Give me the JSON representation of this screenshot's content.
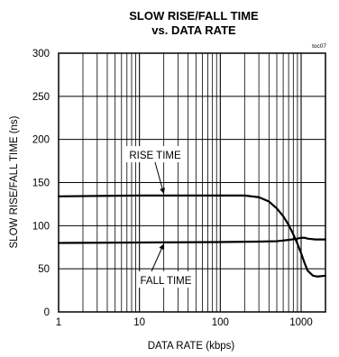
{
  "chart_data": {
    "type": "line",
    "title": "SLOW RISE/FALL TIME",
    "subtitle": "vs. DATA RATE",
    "figure_code": "toc07",
    "xlabel": "DATA RATE (kbps)",
    "ylabel": "SLOW RISE/FALL TIME (ns)",
    "x_scale": "log",
    "xlim": [
      1,
      2000
    ],
    "ylim": [
      0,
      300
    ],
    "x_ticks": [
      1,
      10,
      100,
      1000
    ],
    "x_tick_labels": [
      "1",
      "10",
      "100",
      "1000"
    ],
    "y_ticks": [
      0,
      50,
      100,
      150,
      200,
      250,
      300
    ],
    "y_tick_labels": [
      "0",
      "50",
      "100",
      "150",
      "200",
      "250",
      "300"
    ],
    "grid": true,
    "legend": "none",
    "series": [
      {
        "name": "RISE TIME",
        "x": [
          1,
          10,
          100,
          200,
          300,
          400,
          500,
          600,
          700,
          800,
          900,
          1000,
          1100,
          1200,
          1400,
          1600,
          2000
        ],
        "y": [
          134,
          135,
          135,
          135,
          133,
          128,
          120,
          111,
          101,
          90,
          79,
          68,
          57,
          48,
          42,
          41,
          42
        ]
      },
      {
        "name": "FALL TIME",
        "x": [
          1,
          10,
          100,
          300,
          500,
          700,
          900,
          1000,
          1100,
          1200,
          1500,
          2000
        ],
        "y": [
          80,
          80.5,
          81,
          81.5,
          82,
          83.5,
          85,
          86,
          86,
          85,
          84,
          84
        ]
      }
    ],
    "annotations": [
      {
        "text": "RISE TIME",
        "series": "RISE TIME"
      },
      {
        "text": "FALL TIME",
        "series": "FALL TIME"
      }
    ]
  }
}
